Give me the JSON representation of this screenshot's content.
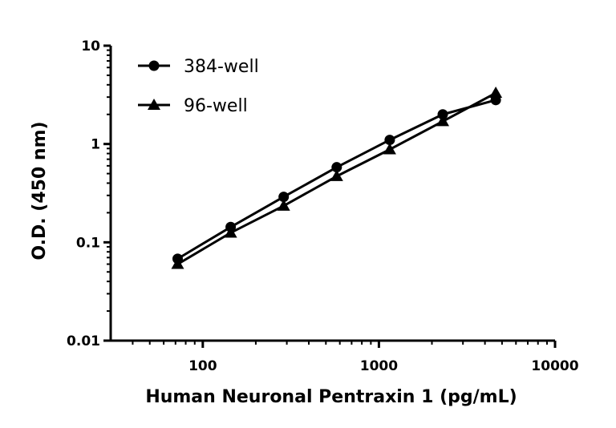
{
  "chart_data": {
    "type": "line",
    "xlabel": "Human Neuronal Pentraxin 1 (pg/mL)",
    "ylabel": "O.D. (450 nm)",
    "x_scale": "log",
    "y_scale": "log",
    "xlim": [
      30,
      10000
    ],
    "ylim": [
      0.01,
      10
    ],
    "x_ticks": [
      {
        "value": 100,
        "label": "100"
      },
      {
        "value": 1000,
        "label": "1000"
      },
      {
        "value": 10000,
        "label": "10000"
      }
    ],
    "y_ticks": [
      {
        "value": 0.01,
        "label": "0.01"
      },
      {
        "value": 0.1,
        "label": "0.1"
      },
      {
        "value": 1,
        "label": "1"
      },
      {
        "value": 10,
        "label": "10"
      }
    ],
    "grid": false,
    "legend_position": "top-left",
    "series": [
      {
        "name": "384-well",
        "marker": "circle",
        "color": "#000000",
        "x": [
          72,
          144,
          288,
          576,
          1152,
          2304,
          4608
        ],
        "y": [
          0.068,
          0.143,
          0.29,
          0.58,
          1.1,
          2.0,
          2.8
        ]
      },
      {
        "name": "96-well",
        "marker": "triangle",
        "color": "#000000",
        "x": [
          72,
          144,
          288,
          576,
          1152,
          2304,
          4608
        ],
        "y": [
          0.06,
          0.125,
          0.235,
          0.47,
          0.88,
          1.7,
          3.3
        ]
      }
    ]
  }
}
